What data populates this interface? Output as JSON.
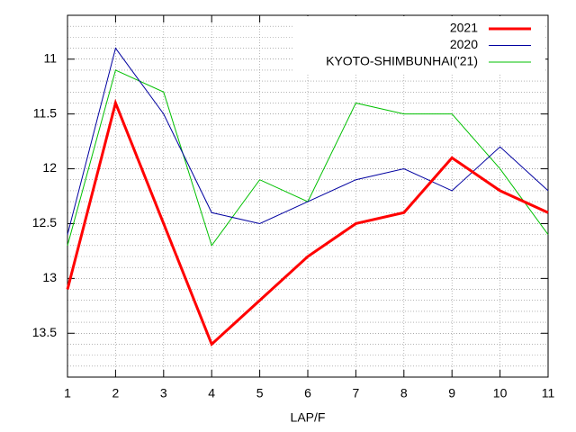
{
  "chart_data": {
    "type": "line",
    "x_label": "LAP/F",
    "x": [
      1,
      2,
      3,
      4,
      5,
      6,
      7,
      8,
      9,
      10,
      11
    ],
    "xlim": [
      1,
      11
    ],
    "xticks": [
      1,
      2,
      3,
      4,
      5,
      6,
      7,
      8,
      9,
      10,
      11
    ],
    "ylim": [
      10.6,
      13.9
    ],
    "y_reversed": true,
    "yticks": [
      11,
      11.5,
      12,
      12.5,
      13,
      13.5
    ],
    "y_minor_step": 0.1,
    "grid": true,
    "legend": "top-right",
    "series": [
      {
        "name": "2021",
        "color": "#ff0000",
        "line_width": 3,
        "values": [
          13.1,
          11.4,
          12.5,
          13.6,
          13.2,
          12.8,
          12.5,
          12.4,
          11.9,
          12.2,
          12.4
        ]
      },
      {
        "name": "2020",
        "color": "#0000a0",
        "line_width": 1,
        "values": [
          12.6,
          10.9,
          11.5,
          12.4,
          12.5,
          12.3,
          12.1,
          12.0,
          12.2,
          11.8,
          12.2
        ]
      },
      {
        "name": "KYOTO-SHIMBUNHAI('21)",
        "color": "#00c000",
        "line_width": 1,
        "values": [
          12.7,
          11.1,
          11.3,
          12.7,
          12.1,
          12.3,
          11.4,
          11.5,
          11.5,
          12.0,
          12.6
        ]
      }
    ]
  }
}
